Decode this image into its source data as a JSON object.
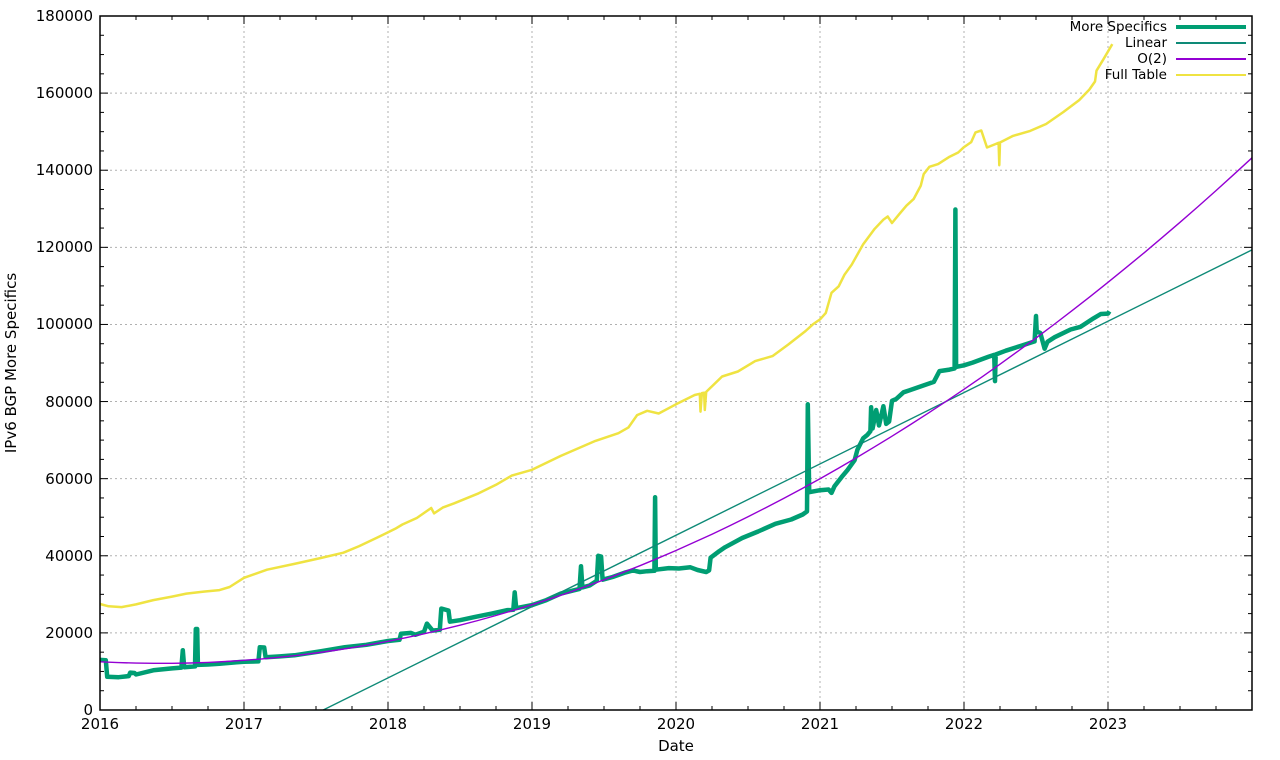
{
  "chart_data": {
    "type": "line",
    "title": "",
    "xlabel": "Date",
    "ylabel": "IPv6 BGP More Specifics",
    "xlim": [
      2016,
      2024
    ],
    "ylim": [
      0,
      180000
    ],
    "x_major_ticks": [
      2016,
      2017,
      2018,
      2019,
      2020,
      2021,
      2022,
      2023
    ],
    "y_major_ticks": [
      0,
      20000,
      40000,
      60000,
      80000,
      100000,
      120000,
      140000,
      160000,
      180000
    ],
    "x_minor_step": 0.25,
    "y_minor_step": 5000,
    "grid": true,
    "legend_position": "top-right-inside",
    "colors": {
      "more_specifics": "#009e73",
      "linear": "#0e8a77",
      "o2": "#9400d3",
      "full_table": "#efe342"
    },
    "series": [
      {
        "name": "More Specifics",
        "slug": "more-specifics",
        "color": "#009e73",
        "stroke_width": 4.5,
        "role": "data",
        "points": [
          [
            2016.0,
            13000
          ],
          [
            2016.04,
            12900
          ],
          [
            2016.05,
            8600
          ],
          [
            2016.13,
            8500
          ],
          [
            2016.2,
            8800
          ],
          [
            2016.21,
            9700
          ],
          [
            2016.24,
            9600
          ],
          [
            2016.25,
            9200
          ],
          [
            2016.37,
            10300
          ],
          [
            2016.5,
            10800
          ],
          [
            2016.565,
            11000
          ],
          [
            2016.575,
            15500
          ],
          [
            2016.585,
            11100
          ],
          [
            2016.66,
            11300
          ],
          [
            2016.665,
            21000
          ],
          [
            2016.675,
            21000
          ],
          [
            2016.68,
            11700
          ],
          [
            2016.75,
            11800
          ],
          [
            2016.83,
            12000
          ],
          [
            2016.95,
            12400
          ],
          [
            2017.0,
            12500
          ],
          [
            2017.1,
            12600
          ],
          [
            2017.11,
            16300
          ],
          [
            2017.14,
            16200
          ],
          [
            2017.15,
            13700
          ],
          [
            2017.25,
            13900
          ],
          [
            2017.35,
            14200
          ],
          [
            2017.53,
            15200
          ],
          [
            2017.7,
            16300
          ],
          [
            2017.85,
            16900
          ],
          [
            2018.0,
            17900
          ],
          [
            2018.08,
            18200
          ],
          [
            2018.09,
            19800
          ],
          [
            2018.16,
            20000
          ],
          [
            2018.19,
            19500
          ],
          [
            2018.25,
            20300
          ],
          [
            2018.27,
            22400
          ],
          [
            2018.31,
            20600
          ],
          [
            2018.36,
            20800
          ],
          [
            2018.37,
            26300
          ],
          [
            2018.42,
            25800
          ],
          [
            2018.43,
            22900
          ],
          [
            2018.5,
            23300
          ],
          [
            2018.6,
            24100
          ],
          [
            2018.72,
            25000
          ],
          [
            2018.83,
            25900
          ],
          [
            2018.87,
            26000
          ],
          [
            2018.88,
            30500
          ],
          [
            2018.89,
            26400
          ],
          [
            2019.0,
            27200
          ],
          [
            2019.1,
            28500
          ],
          [
            2019.2,
            30200
          ],
          [
            2019.33,
            31400
          ],
          [
            2019.34,
            37300
          ],
          [
            2019.35,
            31800
          ],
          [
            2019.4,
            32300
          ],
          [
            2019.45,
            33500
          ],
          [
            2019.46,
            40000
          ],
          [
            2019.48,
            39800
          ],
          [
            2019.49,
            33800
          ],
          [
            2019.56,
            34500
          ],
          [
            2019.65,
            35700
          ],
          [
            2019.7,
            36200
          ],
          [
            2019.75,
            35800
          ],
          [
            2019.8,
            36000
          ],
          [
            2019.85,
            36100
          ],
          [
            2019.855,
            55200
          ],
          [
            2019.86,
            36400
          ],
          [
            2019.95,
            36800
          ],
          [
            2020.02,
            36700
          ],
          [
            2020.1,
            37000
          ],
          [
            2020.15,
            36300
          ],
          [
            2020.21,
            35800
          ],
          [
            2020.23,
            36200
          ],
          [
            2020.24,
            39500
          ],
          [
            2020.3,
            41200
          ],
          [
            2020.34,
            42200
          ],
          [
            2020.46,
            44600
          ],
          [
            2020.57,
            46300
          ],
          [
            2020.69,
            48300
          ],
          [
            2020.8,
            49400
          ],
          [
            2020.88,
            50700
          ],
          [
            2020.91,
            51500
          ],
          [
            2020.915,
            79300
          ],
          [
            2020.925,
            56500
          ],
          [
            2021.0,
            57000
          ],
          [
            2021.06,
            57200
          ],
          [
            2021.08,
            56300
          ],
          [
            2021.1,
            58000
          ],
          [
            2021.15,
            60400
          ],
          [
            2021.19,
            62200
          ],
          [
            2021.24,
            64800
          ],
          [
            2021.26,
            67500
          ],
          [
            2021.3,
            70500
          ],
          [
            2021.33,
            71400
          ],
          [
            2021.35,
            72300
          ],
          [
            2021.355,
            78500
          ],
          [
            2021.365,
            73000
          ],
          [
            2021.39,
            77800
          ],
          [
            2021.41,
            73800
          ],
          [
            2021.44,
            78800
          ],
          [
            2021.46,
            74200
          ],
          [
            2021.48,
            74800
          ],
          [
            2021.5,
            80200
          ],
          [
            2021.53,
            80700
          ],
          [
            2021.58,
            82400
          ],
          [
            2021.62,
            82900
          ],
          [
            2021.72,
            84200
          ],
          [
            2021.79,
            85100
          ],
          [
            2021.83,
            87900
          ],
          [
            2021.9,
            88300
          ],
          [
            2021.935,
            88600
          ],
          [
            2021.94,
            129800
          ],
          [
            2021.945,
            89000
          ],
          [
            2022.0,
            89400
          ],
          [
            2022.06,
            90100
          ],
          [
            2022.17,
            91600
          ],
          [
            2022.21,
            92100
          ],
          [
            2022.215,
            85300
          ],
          [
            2022.22,
            92200
          ],
          [
            2022.29,
            93200
          ],
          [
            2022.4,
            94500
          ],
          [
            2022.49,
            95600
          ],
          [
            2022.5,
            102200
          ],
          [
            2022.505,
            98200
          ],
          [
            2022.53,
            97800
          ],
          [
            2022.56,
            93700
          ],
          [
            2022.58,
            95500
          ],
          [
            2022.63,
            96700
          ],
          [
            2022.74,
            98700
          ],
          [
            2022.81,
            99400
          ],
          [
            2022.9,
            101600
          ],
          [
            2022.95,
            102700
          ],
          [
            2023.0,
            102800
          ],
          [
            2023.01,
            103400
          ]
        ]
      },
      {
        "name": "Linear",
        "slug": "linear",
        "color": "#0e8a77",
        "stroke_width": 1.4,
        "role": "fit",
        "fit": {
          "type": "linear",
          "slope_per_year": 18500,
          "x_intercept": 2017.55
        },
        "points": [
          [
            2017.55,
            0
          ],
          [
            2018,
            8325
          ],
          [
            2019,
            26825
          ],
          [
            2020,
            45325
          ],
          [
            2021,
            63825
          ],
          [
            2022,
            82325
          ],
          [
            2023,
            100825
          ],
          [
            2024,
            119325
          ]
        ]
      },
      {
        "name": "O(2)",
        "slug": "o2",
        "color": "#9400d3",
        "stroke_width": 1.4,
        "role": "fit",
        "fit": {
          "type": "quadratic",
          "t0": 2016,
          "a": 2280,
          "b": -1900,
          "c": 12500
        },
        "points": [
          [
            2016,
            12500
          ],
          [
            2017,
            12880
          ],
          [
            2018,
            16980
          ],
          [
            2019,
            27320
          ],
          [
            2020,
            41380
          ],
          [
            2021,
            60000
          ],
          [
            2022,
            83180
          ],
          [
            2023,
            110920
          ],
          [
            2024,
            143220
          ]
        ]
      },
      {
        "name": "Full Table",
        "slug": "full-table",
        "color": "#efe342",
        "stroke_width": 2.5,
        "role": "data",
        "points": [
          [
            2016.0,
            27500
          ],
          [
            2016.06,
            26900
          ],
          [
            2016.15,
            26700
          ],
          [
            2016.25,
            27400
          ],
          [
            2016.37,
            28500
          ],
          [
            2016.5,
            29400
          ],
          [
            2016.6,
            30200
          ],
          [
            2016.72,
            30700
          ],
          [
            2016.83,
            31100
          ],
          [
            2016.9,
            31900
          ],
          [
            2017.0,
            34300
          ],
          [
            2017.16,
            36400
          ],
          [
            2017.35,
            37900
          ],
          [
            2017.53,
            39400
          ],
          [
            2017.69,
            40800
          ],
          [
            2017.8,
            42500
          ],
          [
            2017.93,
            44800
          ],
          [
            2018.05,
            47000
          ],
          [
            2018.1,
            48100
          ],
          [
            2018.2,
            49800
          ],
          [
            2018.3,
            52400
          ],
          [
            2018.32,
            51000
          ],
          [
            2018.38,
            52500
          ],
          [
            2018.46,
            53600
          ],
          [
            2018.63,
            56200
          ],
          [
            2018.75,
            58400
          ],
          [
            2018.86,
            60800
          ],
          [
            2019.0,
            62300
          ],
          [
            2019.2,
            65900
          ],
          [
            2019.44,
            69800
          ],
          [
            2019.6,
            71800
          ],
          [
            2019.67,
            73300
          ],
          [
            2019.73,
            76500
          ],
          [
            2019.8,
            77600
          ],
          [
            2019.88,
            76900
          ],
          [
            2020.0,
            79300
          ],
          [
            2020.13,
            81700
          ],
          [
            2020.165,
            82000
          ],
          [
            2020.17,
            77400
          ],
          [
            2020.18,
            82200
          ],
          [
            2020.195,
            82300
          ],
          [
            2020.2,
            77800
          ],
          [
            2020.21,
            82500
          ],
          [
            2020.32,
            86500
          ],
          [
            2020.43,
            87800
          ],
          [
            2020.55,
            90500
          ],
          [
            2020.67,
            91800
          ],
          [
            2020.78,
            94800
          ],
          [
            2020.9,
            98300
          ],
          [
            2020.95,
            100000
          ],
          [
            2021.0,
            101300
          ],
          [
            2021.04,
            103000
          ],
          [
            2021.08,
            108200
          ],
          [
            2021.13,
            109900
          ],
          [
            2021.17,
            112900
          ],
          [
            2021.22,
            115500
          ],
          [
            2021.3,
            120800
          ],
          [
            2021.38,
            124800
          ],
          [
            2021.44,
            127200
          ],
          [
            2021.47,
            128000
          ],
          [
            2021.5,
            126300
          ],
          [
            2021.55,
            128600
          ],
          [
            2021.6,
            130800
          ],
          [
            2021.65,
            132500
          ],
          [
            2021.7,
            136000
          ],
          [
            2021.72,
            139000
          ],
          [
            2021.76,
            140900
          ],
          [
            2021.82,
            141600
          ],
          [
            2021.9,
            143500
          ],
          [
            2021.96,
            144600
          ],
          [
            2022.0,
            146000
          ],
          [
            2022.05,
            147300
          ],
          [
            2022.08,
            149800
          ],
          [
            2022.12,
            150300
          ],
          [
            2022.16,
            145900
          ],
          [
            2022.22,
            146800
          ],
          [
            2022.24,
            147100
          ],
          [
            2022.245,
            141300
          ],
          [
            2022.25,
            147200
          ],
          [
            2022.34,
            148900
          ],
          [
            2022.46,
            150200
          ],
          [
            2022.57,
            152000
          ],
          [
            2022.69,
            155100
          ],
          [
            2022.8,
            158200
          ],
          [
            2022.87,
            160900
          ],
          [
            2022.91,
            163000
          ],
          [
            2022.92,
            165800
          ],
          [
            2022.97,
            168900
          ],
          [
            2023.03,
            172700
          ]
        ]
      }
    ],
    "style": {
      "grid_color": "#b0b0b0",
      "axis_color": "#000000",
      "background": "#ffffff"
    }
  }
}
